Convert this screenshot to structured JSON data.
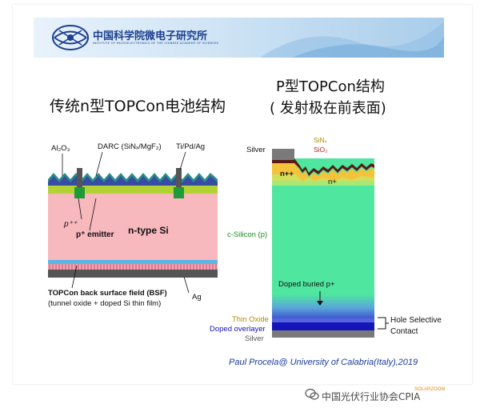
{
  "header": {
    "institute_cn": "中国科学院微电子研究所",
    "institute_en": "INSTITUTE OF MICROELECTRONICS OF THE CHINESE ACADEMY OF SCIENCES",
    "brand_color": "#1c3f8e"
  },
  "left_title": "传统n型TOPCon电池结构",
  "right_title_line1": "P型TOPCon结构",
  "right_title_line2": "( 发射极在前表面)",
  "left_diagram": {
    "labels": {
      "al2o3": "Al₂O₃",
      "darc": "DARC (SiNₓ/MgF₂)",
      "metal": "Ti/Pd/Ag",
      "p_plus_plus": "p⁺⁺",
      "p_emitter": "p⁺ emitter",
      "n_type": "n-type Si",
      "bsf_line1": "TOPCon back surface field (BSF)",
      "bsf_line2": "(tunnel oxide + doped Si thin film)",
      "ag": "Ag"
    },
    "colors": {
      "substrate": "#f7b8be",
      "emitter": "#b3d334",
      "darc": "#2a8f8a",
      "metal": "#555555",
      "bsf": "#58b8e8"
    }
  },
  "right_diagram": {
    "labels": {
      "silver_top": "Silver",
      "sinx": "SiNₓ",
      "sio2": "SiO₂",
      "n_plus_plus": "n++",
      "n_plus": "n+",
      "c_silicon": "c-Silicon (p)",
      "doped_buried": "Doped buried p+",
      "thin_oxide": "Thin Oxide",
      "doped_overlayer": "Doped overlayer",
      "silver_bottom": "Silver",
      "hole_selective_1": "Hole Selective",
      "hole_selective_2": "Contact"
    },
    "colors": {
      "silicon": "#4fe6a0",
      "buried": "#4a7bd6",
      "overlayer": "#1414b8",
      "silver": "#7a7a7a"
    }
  },
  "citation": "Paul Procela@ University of Calabria(Italy),2019",
  "watermark": "SOLARZOOM",
  "footer": "中国光伏行业协会CPIA"
}
